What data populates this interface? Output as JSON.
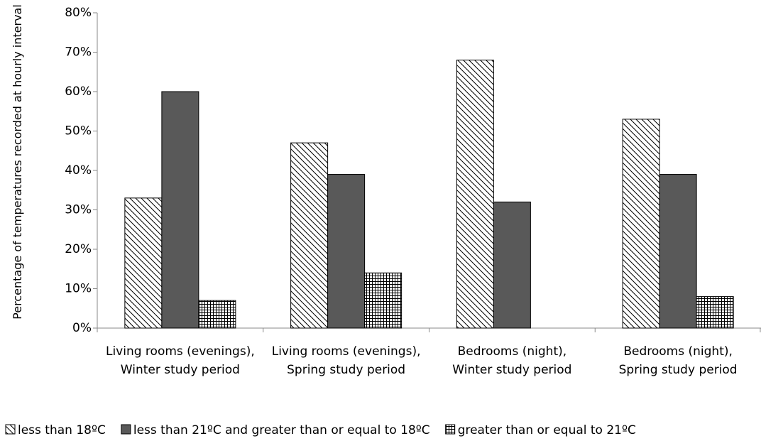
{
  "chart_data": {
    "type": "bar",
    "ylabel": "Percentage of temperatures recorded at hourly interval",
    "categories": [
      "Living rooms (evenings), Winter study period",
      "Living rooms (evenings), Spring study period",
      "Bedrooms (night), Winter study period",
      "Bedrooms (night), Spring study period"
    ],
    "series": [
      {
        "name": "less than 18ºC",
        "color": "#000000",
        "pattern": "diagonal",
        "values": [
          33,
          47,
          68,
          53
        ]
      },
      {
        "name": "less than 21ºC and greater than or equal to 18ºC",
        "color": "#595959",
        "pattern": "solid",
        "values": [
          60,
          39,
          32,
          39
        ]
      },
      {
        "name": "greater than or equal to 21ºC",
        "color": "#000000",
        "pattern": "grid",
        "values": [
          7,
          14,
          null,
          8
        ]
      }
    ],
    "ylim": [
      0,
      80
    ],
    "yticks": [
      {
        "value": 0,
        "label": "0%"
      },
      {
        "value": 10,
        "label": "10%"
      },
      {
        "value": 20,
        "label": "20%"
      },
      {
        "value": 30,
        "label": "30%"
      },
      {
        "value": 40,
        "label": "40%"
      },
      {
        "value": 50,
        "label": "50%"
      },
      {
        "value": 60,
        "label": "60%"
      },
      {
        "value": 70,
        "label": "70%"
      },
      {
        "value": 80,
        "label": "80%"
      }
    ],
    "legend": "bottom"
  }
}
